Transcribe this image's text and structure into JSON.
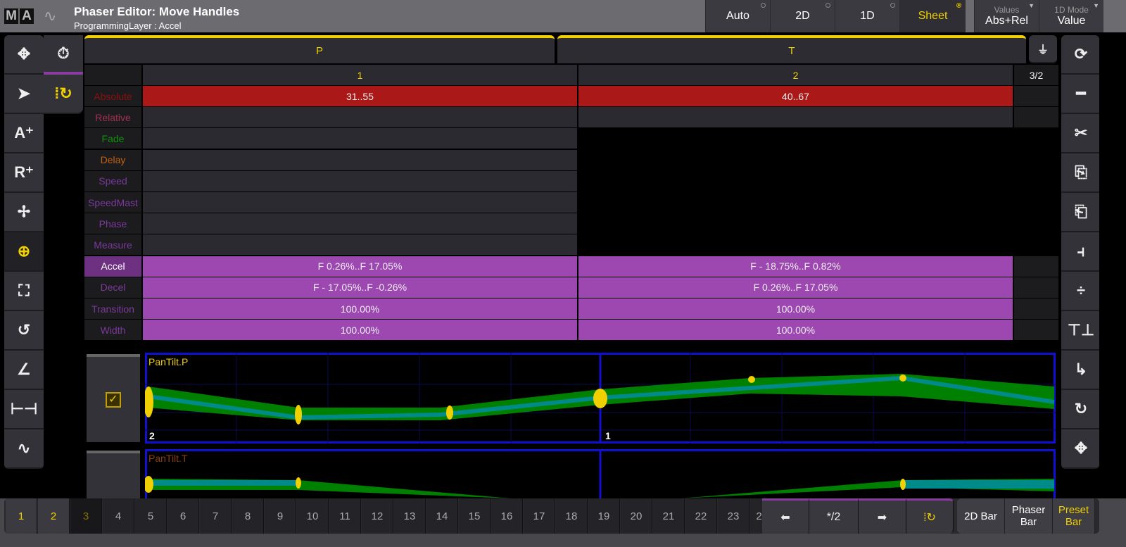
{
  "titlebar": {
    "logo": [
      "M",
      "A"
    ],
    "title": "Phaser Editor: Move Handles",
    "subtitle": "ProgrammingLayer : Accel",
    "modes": [
      "Auto",
      "2D",
      "1D",
      "Sheet"
    ],
    "selected_mode": "Sheet",
    "values_label": "Values",
    "values_value": "Abs+Rel",
    "mode1d_label": "1D Mode",
    "mode1d_value": "Value"
  },
  "attributes": {
    "p": "P",
    "t": "T"
  },
  "columns": {
    "c1": "1",
    "c2": "2",
    "page": "3/2"
  },
  "rows": [
    {
      "label": "Absolute",
      "color": "#8a1010",
      "v1": "31..55",
      "v2": "40..67"
    },
    {
      "label": "Relative",
      "color": "#a03050",
      "v1": "",
      "v2": ""
    },
    {
      "label": "Fade",
      "color": "#109010",
      "v1": "",
      "v2": ""
    },
    {
      "label": "Delay",
      "color": "#c06010",
      "v1": "",
      "v2": ""
    },
    {
      "label": "Speed",
      "color": "#7a3a9a",
      "v1": "",
      "v2": ""
    },
    {
      "label": "SpeedMast",
      "color": "#7a3a9a",
      "v1": "",
      "v2": ""
    },
    {
      "label": "Phase",
      "color": "#7a3a9a",
      "v1": "",
      "v2": ""
    },
    {
      "label": "Measure",
      "color": "#7a3a9a",
      "v1": "",
      "v2": ""
    },
    {
      "label": "Accel",
      "color": "#ffffff",
      "v1": "F 0.26%..F 17.05%",
      "v2": "F - 18.75%..F 0.82%"
    },
    {
      "label": "Decel",
      "color": "#7a3a9a",
      "v1": "F - 17.05%..F -0.26%",
      "v2": "F 0.26%..F 17.05%"
    },
    {
      "label": "Transition",
      "color": "#7a3a9a",
      "v1": "100.00%",
      "v2": "100.00%"
    },
    {
      "label": "Width",
      "color": "#7a3a9a",
      "v1": "100.00%",
      "v2": "100.00%"
    }
  ],
  "graphs": {
    "p_label": "PanTilt.P",
    "t_label": "PanTilt.T",
    "marker_2": "2",
    "marker_1": "1"
  },
  "pool": [
    "1",
    "2",
    "3",
    "4",
    "5",
    "6",
    "7",
    "8",
    "9",
    "10",
    "11",
    "12",
    "13",
    "14",
    "15",
    "16",
    "17",
    "18",
    "19",
    "20",
    "21",
    "22",
    "23",
    "2"
  ],
  "nav": {
    "page": "*/2"
  },
  "bars": {
    "b2d": "2D Bar",
    "phaser": "Phaser Bar",
    "preset": "Preset Bar"
  },
  "colors": {
    "accent": "#f0d000",
    "absolute": "#ab1818",
    "accel": "#9c48b0",
    "graph_border": "#1010d0",
    "curve": "#008000"
  }
}
